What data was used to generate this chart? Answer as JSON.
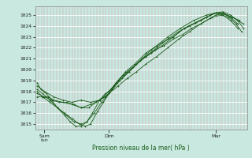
{
  "bg_color": "#c8e8e0",
  "grid_color_v": "#d4a0a8",
  "grid_color_h": "#ffffff",
  "line_color": "#1a5c1a",
  "ylabel_text": "Pression niveau de la mer( hPa )",
  "ylim": [
    1014.5,
    1025.8
  ],
  "xlim": [
    0,
    11.5
  ],
  "yticks": [
    1015,
    1016,
    1017,
    1018,
    1019,
    1020,
    1021,
    1022,
    1023,
    1024,
    1025
  ],
  "xtick_pos": [
    0.5,
    4.0,
    9.8
  ],
  "xtick_labels": [
    "Sam\nlun",
    "Dim",
    "Mar"
  ],
  "series": [
    [
      0.1,
      1018.8,
      0.3,
      1018.2,
      0.6,
      1017.8,
      0.9,
      1017.2,
      1.2,
      1016.5,
      1.6,
      1015.8,
      1.9,
      1015.2,
      2.2,
      1014.8,
      2.5,
      1014.8,
      2.8,
      1015.2,
      3.1,
      1016.0,
      3.5,
      1017.2,
      3.8,
      1017.8,
      4.0,
      1018.0,
      4.3,
      1018.5,
      4.7,
      1019.2,
      5.1,
      1019.8,
      5.5,
      1020.5,
      6.0,
      1021.2,
      6.5,
      1021.8,
      7.0,
      1022.2,
      7.5,
      1022.8,
      8.0,
      1023.2,
      8.5,
      1023.8,
      9.0,
      1024.2,
      9.5,
      1024.7,
      9.8,
      1025.0,
      10.1,
      1025.1,
      10.4,
      1025.0,
      10.7,
      1024.8,
      11.0,
      1024.5,
      11.3,
      1024.2
    ],
    [
      0.1,
      1018.0,
      0.4,
      1017.5,
      0.8,
      1017.0,
      1.2,
      1016.5,
      1.6,
      1016.0,
      2.0,
      1015.5,
      2.4,
      1015.0,
      2.7,
      1014.8,
      3.0,
      1015.0,
      3.4,
      1016.2,
      3.7,
      1017.0,
      4.0,
      1017.8,
      4.4,
      1018.8,
      4.8,
      1019.5,
      5.3,
      1020.2,
      5.8,
      1021.0,
      6.3,
      1021.8,
      6.9,
      1022.5,
      7.5,
      1023.0,
      8.1,
      1023.8,
      8.7,
      1024.3,
      9.3,
      1024.8,
      9.8,
      1025.2,
      10.2,
      1025.3,
      10.6,
      1025.0,
      11.0,
      1024.5,
      11.3,
      1023.8
    ],
    [
      0.1,
      1017.8,
      0.5,
      1017.5,
      0.9,
      1017.2,
      1.3,
      1017.0,
      1.7,
      1017.0,
      2.1,
      1016.8,
      2.5,
      1016.5,
      2.9,
      1016.5,
      3.3,
      1017.0,
      3.7,
      1017.5,
      4.1,
      1018.2,
      4.5,
      1019.0,
      5.0,
      1019.8,
      5.5,
      1020.5,
      6.0,
      1021.2,
      6.6,
      1022.0,
      7.2,
      1022.8,
      7.8,
      1023.5,
      8.4,
      1024.0,
      9.0,
      1024.5,
      9.5,
      1025.0,
      9.9,
      1025.2,
      10.3,
      1025.1,
      10.7,
      1024.8,
      11.1,
      1024.5
    ],
    [
      0.1,
      1017.5,
      0.4,
      1017.5,
      0.7,
      1017.5,
      1.0,
      1017.2,
      1.5,
      1017.0,
      2.0,
      1016.8,
      2.5,
      1016.5,
      3.0,
      1016.8,
      3.5,
      1017.2,
      4.0,
      1017.8,
      4.5,
      1018.5,
      5.0,
      1019.2,
      5.5,
      1019.8,
      6.0,
      1020.5,
      6.6,
      1021.2,
      7.2,
      1022.0,
      7.8,
      1022.8,
      8.4,
      1023.5,
      9.0,
      1024.2,
      9.6,
      1024.8,
      10.1,
      1025.0,
      10.5,
      1024.8,
      10.9,
      1024.2,
      11.2,
      1023.5
    ],
    [
      0.1,
      1018.5,
      0.5,
      1018.0,
      1.0,
      1017.5,
      1.5,
      1017.2,
      2.0,
      1017.0,
      2.5,
      1017.2,
      3.0,
      1017.0,
      3.5,
      1017.2,
      3.8,
      1017.5,
      4.2,
      1018.2,
      4.6,
      1019.0,
      5.1,
      1019.8,
      5.7,
      1020.8,
      6.3,
      1021.5,
      6.9,
      1022.2,
      7.5,
      1023.0,
      8.1,
      1023.8,
      8.7,
      1024.3,
      9.3,
      1024.8,
      9.8,
      1025.2,
      10.2,
      1025.2,
      10.6,
      1024.8,
      11.0,
      1024.2
    ],
    [
      0.1,
      1018.2,
      0.4,
      1017.8,
      0.8,
      1017.2,
      1.2,
      1016.5,
      1.7,
      1015.8,
      2.1,
      1015.2,
      2.5,
      1015.0,
      2.8,
      1015.2,
      3.2,
      1016.0,
      3.6,
      1017.0,
      4.0,
      1017.8,
      4.4,
      1018.8,
      4.9,
      1019.8,
      5.4,
      1020.5,
      6.0,
      1021.5,
      6.6,
      1022.2,
      7.2,
      1023.0,
      7.9,
      1023.8,
      8.6,
      1024.5,
      9.3,
      1025.0,
      9.8,
      1025.2,
      10.2,
      1025.0,
      10.6,
      1024.5,
      11.0,
      1023.8
    ]
  ]
}
